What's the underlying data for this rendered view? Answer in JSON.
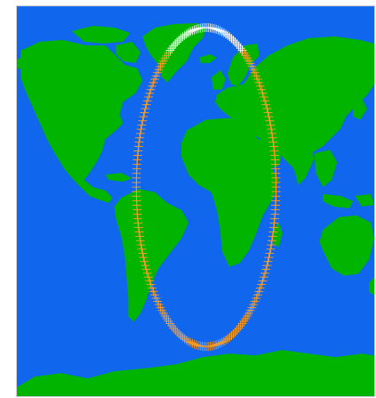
{
  "page": {
    "title": ""
  },
  "map": {
    "projection": "equirectangular",
    "colors": {
      "ocean": "#1166ee",
      "land": "#00b400",
      "track_tick": "#ff9d1f",
      "track_tick_light": "#ffffff"
    },
    "track": {
      "description": "",
      "shape": "closed orbital loop"
    }
  }
}
